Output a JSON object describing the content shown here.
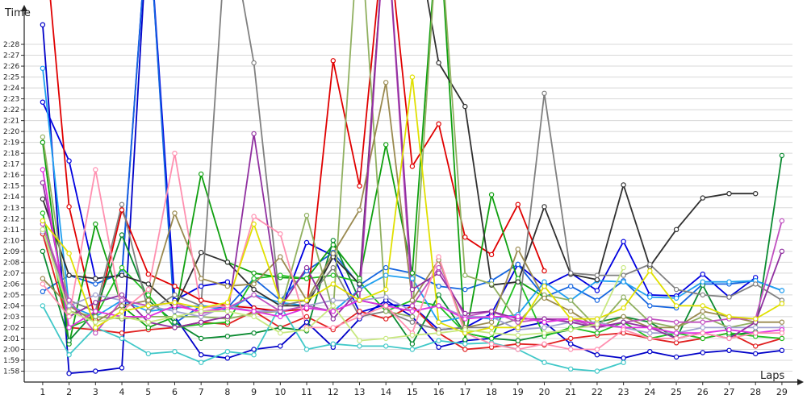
{
  "chart_data": {
    "type": "line",
    "ylabel": "Time",
    "xlabel": "Laps",
    "x": [
      1,
      2,
      3,
      4,
      5,
      6,
      7,
      8,
      9,
      10,
      11,
      12,
      13,
      14,
      15,
      16,
      17,
      18,
      19,
      20,
      21,
      22,
      23,
      24,
      25,
      26,
      27,
      28,
      29
    ],
    "xlim": [
      0.3,
      29.4
    ],
    "ylim": [
      117.0,
      150.0
    ],
    "grid": true,
    "y_ticks": [
      {
        "label": "1:58",
        "value": 118
      },
      {
        "label": "1:59",
        "value": 119
      },
      {
        "label": "2:00",
        "value": 120
      },
      {
        "label": "2:01",
        "value": 121
      },
      {
        "label": "2:02",
        "value": 122
      },
      {
        "label": "2:03",
        "value": 123
      },
      {
        "label": "2:04",
        "value": 124
      },
      {
        "label": "2:05",
        "value": 125
      },
      {
        "label": "2:06",
        "value": 126
      },
      {
        "label": "2:07",
        "value": 127
      },
      {
        "label": "2:08",
        "value": 128
      },
      {
        "label": "2:09",
        "value": 129
      },
      {
        "label": "2:10",
        "value": 130
      },
      {
        "label": "2:11",
        "value": 131
      },
      {
        "label": "2:12",
        "value": 132
      },
      {
        "label": "2:13",
        "value": 133
      },
      {
        "label": "2:14",
        "value": 134
      },
      {
        "label": "2:15",
        "value": 135
      },
      {
        "label": "2:16",
        "value": 136
      },
      {
        "label": "2:17",
        "value": 137
      },
      {
        "label": "2:18",
        "value": 138
      },
      {
        "label": "2:19",
        "value": 139
      },
      {
        "label": "2:20",
        "value": 140
      },
      {
        "label": "2:21",
        "value": 141
      },
      {
        "label": "2:22",
        "value": 142
      },
      {
        "label": "2:23",
        "value": 143
      },
      {
        "label": "2:24",
        "value": 144
      },
      {
        "label": "2:25",
        "value": 145
      },
      {
        "label": "2:26",
        "value": 146
      },
      {
        "label": "2:27",
        "value": 147
      },
      {
        "label": "2:28",
        "value": 148
      }
    ],
    "series": [
      {
        "color": "#0000c8",
        "values": [
          149.8,
          117.8,
          118.0,
          118.3,
          160,
          123.0,
          119.5,
          119.2,
          120.0,
          120.3,
          122.5,
          120.2,
          122.8,
          124.5,
          123.0,
          120.2,
          120.8,
          121.0,
          122.0,
          122.5,
          120.5,
          119.5,
          119.2,
          119.8,
          119.3,
          119.7,
          119.9,
          119.6,
          119.9
        ]
      },
      {
        "color": "#0000e0",
        "values": [
          142.7,
          137.3,
          126.5,
          126.8,
          160,
          124.5,
          125.8,
          126.2,
          123.8,
          123.4,
          129.8,
          128.6,
          123.4,
          124.1,
          124.0,
          121.8,
          122.0,
          123.3,
          127.8,
          125.8,
          127.0,
          125.4,
          129.9,
          125.0,
          124.9,
          126.9,
          124.8,
          126.6,
          null
        ]
      },
      {
        "color": "#1565e0",
        "values": [
          125.3,
          126.8,
          126.0,
          127.0,
          160,
          122.4,
          124.0,
          123.8,
          126.5,
          124.5,
          127.2,
          128.9,
          125.9,
          127.5,
          127.0,
          125.8,
          125.5,
          126.3,
          127.8,
          124.8,
          125.8,
          124.5,
          126.3,
          124.0,
          123.8,
          126.0,
          126.0,
          126.3,
          125.4
        ]
      },
      {
        "color": "#e00000",
        "values": [
          160,
          133.1,
          122.7,
          132.8,
          126.9,
          125.8,
          124.5,
          124.0,
          123.8,
          123.5,
          123.7,
          146.5,
          135.0,
          160,
          136.8,
          140.7,
          130.3,
          128.7,
          133.3,
          127.2,
          null,
          null,
          null,
          null,
          null,
          null,
          null,
          null,
          null
        ]
      },
      {
        "color": "#e02020",
        "values": [
          130.6,
          122.0,
          121.8,
          121.5,
          121.8,
          122.0,
          122.5,
          122.3,
          123.5,
          122.0,
          123.0,
          121.8,
          123.5,
          122.8,
          124.0,
          121.5,
          120.0,
          120.2,
          120.5,
          120.4,
          121.0,
          121.3,
          121.5,
          121.0,
          120.6,
          121.0,
          121.5,
          120.3,
          121.0
        ]
      },
      {
        "color": "#10a010",
        "values": [
          139.0,
          120.5,
          131.5,
          124.0,
          122.0,
          123.0,
          136.1,
          128.0,
          127.0,
          126.6,
          126.5,
          129.6,
          126.5,
          138.8,
          127.0,
          160,
          120.9,
          134.2,
          126.3,
          124.8,
          null,
          null,
          null,
          null,
          null,
          null,
          null,
          null,
          null
        ]
      },
      {
        "color": "#0a8a30",
        "values": [
          129.0,
          120.8,
          123.5,
          130.5,
          124.5,
          122.5,
          121.0,
          121.2,
          121.5,
          122.0,
          121.7,
          130.0,
          124.5,
          124.0,
          120.5,
          125.0,
          121.5,
          121.0,
          120.8,
          121.3,
          121.8,
          122.5,
          123.0,
          122.5,
          121.0,
          125.9,
          121.3,
          121.6,
          137.8
        ]
      },
      {
        "color": "#20c020",
        "values": [
          132.5,
          122.0,
          123.0,
          127.5,
          125.0,
          122.0,
          122.3,
          122.5,
          126.5,
          126.8,
          126.5,
          126.8,
          126.2,
          123.5,
          124.5,
          124.0,
          121.5,
          121.0,
          126.5,
          121.2,
          122.0,
          121.5,
          122.5,
          121.0,
          121.5,
          121.0,
          121.5,
          121.2,
          121.0
        ]
      },
      {
        "color": "#40c8c8",
        "values": [
          124.0,
          119.5,
          122.0,
          121.0,
          119.6,
          119.8,
          118.8,
          119.8,
          119.5,
          124.0,
          120.0,
          120.5,
          120.3,
          120.3,
          120.0,
          120.8,
          120.5,
          120.6,
          120.0,
          118.8,
          118.2,
          118.0,
          118.8,
          null,
          null,
          null,
          null,
          null,
          null
        ]
      },
      {
        "color": "#20a0f0",
        "values": [
          145.8,
          124.0,
          123.0,
          124.5,
          123.5,
          123.8,
          124.0,
          123.6,
          125.0,
          124.3,
          124.0,
          123.5,
          125.5,
          126.8,
          126.5,
          122.5,
          123.0,
          122.8,
          123.2,
          126.2,
          124.5,
          126.3,
          126.2,
          124.8,
          124.7,
          126.2,
          126.2,
          126.3,
          125.4
        ]
      },
      {
        "color": "#303030",
        "values": [
          133.8,
          126.8,
          126.5,
          126.8,
          126.0,
          123.8,
          128.9,
          128.0,
          125.5,
          124.0,
          124.0,
          128.5,
          126.0,
          160,
          160,
          146.3,
          142.3,
          125.9,
          126.2,
          133.1,
          126.9,
          126.4,
          135.1,
          127.6,
          131.0,
          133.9,
          134.3,
          134.3,
          null
        ]
      },
      {
        "color": "#808080",
        "values": [
          131.0,
          124.5,
          123.5,
          133.3,
          123.5,
          125.0,
          124.0,
          160,
          146.3,
          124.0,
          124.5,
          127.5,
          123.0,
          123.5,
          122.5,
          121.8,
          122.0,
          122.0,
          122.8,
          143.5,
          127.0,
          126.8,
          126.8,
          127.8,
          125.5,
          125.0,
          124.8,
          126.0,
          124.5
        ]
      },
      {
        "color": "#90b060",
        "values": [
          139.5,
          123.5,
          123.0,
          122.8,
          123.0,
          123.0,
          123.0,
          122.8,
          123.3,
          123.5,
          132.3,
          123.5,
          160,
          123.5,
          123.0,
          160,
          126.8,
          126.0,
          122.5,
          125.0,
          124.5,
          122.0,
          124.8,
          122.5,
          122.0,
          123.0,
          122.0,
          122.5,
          null
        ]
      },
      {
        "color": "#9a8a50",
        "values": [
          126.5,
          124.0,
          122.5,
          124.0,
          124.5,
          132.5,
          126.5,
          125.8,
          126.0,
          128.5,
          124.5,
          128.8,
          132.8,
          144.5,
          124.5,
          128.2,
          122.0,
          122.5,
          129.2,
          124.7,
          123.5,
          122.0,
          123.0,
          122.0,
          122.0,
          123.5,
          123.0,
          122.5,
          122.5
        ]
      },
      {
        "color": "#a0a0d0",
        "values": [
          130.8,
          124.0,
          125.0,
          124.5,
          124.0,
          123.5,
          123.0,
          124.0,
          123.5,
          123.5,
          124.0,
          124.5,
          124.5,
          124.8,
          123.5,
          124.0,
          123.0,
          123.0,
          121.8,
          122.0,
          122.5,
          122.5,
          122.0,
          121.5,
          121.5,
          122.0,
          122.0,
          122.0,
          122.0
        ]
      },
      {
        "color": "#c050c0",
        "values": [
          131.5,
          124.5,
          121.5,
          124.5,
          124.0,
          124.3,
          123.3,
          123.8,
          125.0,
          123.5,
          124.0,
          123.5,
          124.5,
          160,
          124.0,
          127.5,
          123.0,
          123.5,
          122.5,
          122.8,
          122.8,
          122.0,
          122.5,
          122.8,
          122.5,
          122.5,
          122.8,
          122.8,
          131.8
        ]
      },
      {
        "color": "#9030a0",
        "values": [
          135.3,
          123.0,
          124.3,
          125.0,
          122.5,
          122.0,
          122.5,
          123.0,
          139.8,
          123.8,
          127.5,
          122.8,
          125.5,
          160,
          125.5,
          127.0,
          123.3,
          123.5,
          122.8,
          122.8,
          122.5,
          122.0,
          122.5,
          122.0,
          121.0,
          121.5,
          121.0,
          122.5,
          129.0
        ]
      },
      {
        "color": "#e030e0",
        "values": [
          136.5,
          122.0,
          123.5,
          123.0,
          123.0,
          124.0,
          123.5,
          123.8,
          123.5,
          123.0,
          123.8,
          123.5,
          124.5,
          124.0,
          123.5,
          124.0,
          122.8,
          123.0,
          123.0,
          122.5,
          122.8,
          122.3,
          122.0,
          122.0,
          121.5,
          121.5,
          121.8,
          121.5,
          121.8
        ]
      },
      {
        "color": "#ff90b0",
        "values": [
          126.0,
          123.0,
          136.5,
          123.5,
          125.5,
          138.0,
          123.8,
          124.0,
          132.2,
          130.6,
          122.0,
          122.0,
          123.0,
          124.0,
          121.5,
          128.5,
          121.5,
          120.5,
          120.0,
          120.5,
          120.0,
          120.0,
          121.8,
          121.0,
          121.0,
          121.5,
          121.0,
          121.5,
          121.5
        ]
      },
      {
        "color": "#e0e000",
        "values": [
          131.8,
          128.8,
          122.0,
          123.5,
          124.0,
          124.3,
          123.8,
          124.3,
          131.5,
          124.5,
          124.5,
          126.0,
          124.5,
          125.5,
          145.0,
          122.5,
          121.5,
          122.0,
          122.0,
          125.8,
          122.8,
          122.8,
          123.8,
          127.2,
          124.0,
          124.0,
          123.0,
          122.8,
          124.2
        ]
      },
      {
        "color": "#c8e880",
        "values": [
          131.0,
          123.5,
          122.5,
          123.0,
          122.5,
          123.0,
          123.5,
          123.5,
          123.0,
          121.5,
          121.8,
          124.0,
          120.8,
          121.0,
          121.3,
          121.5,
          121.8,
          121.5,
          121.3,
          121.5,
          121.8,
          122.3,
          127.5,
          null,
          null,
          null,
          null,
          null,
          null
        ]
      }
    ]
  }
}
